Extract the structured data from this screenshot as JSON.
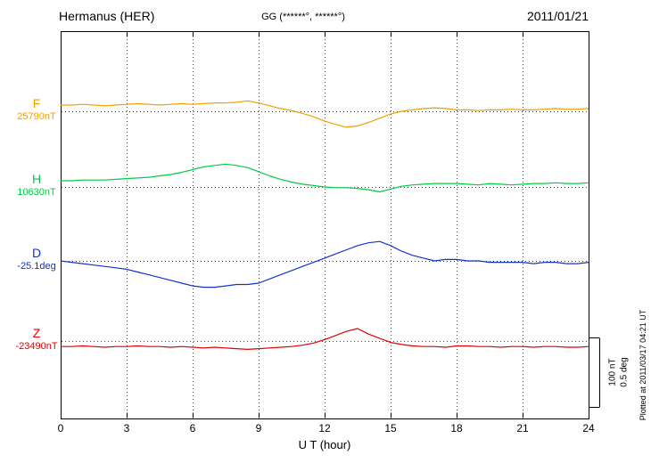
{
  "header": {
    "station": "Hermanus (HER)",
    "coords": "GG (******°, ******°)",
    "date": "2011/01/21"
  },
  "xaxis": {
    "label": "U T (hour)",
    "ticks": [
      0,
      3,
      6,
      9,
      12,
      15,
      18,
      21,
      24
    ],
    "min": 0,
    "max": 24
  },
  "scale_bar": {
    "nt_label": "100 nT",
    "deg_label": "0.5 deg"
  },
  "plotted_at": "Plotted at 2011/03/17 04:21 UT",
  "chart_data": {
    "type": "line",
    "title": "Hermanus (HER) magnetogram 2011/01/21",
    "xlabel": "U T (hour)",
    "xlim": [
      0,
      24
    ],
    "x_ticks": [
      0,
      3,
      6,
      9,
      12,
      15,
      18,
      21,
      24
    ],
    "grid": "dotted vertical at 3h intervals, dotted horizontal baseline per trace",
    "scale": {
      "nt_span": 100,
      "deg_span": 0.5
    },
    "x": [
      0,
      0.5,
      1,
      1.5,
      2,
      2.5,
      3,
      3.5,
      4,
      4.5,
      5,
      5.5,
      6,
      6.5,
      7,
      7.5,
      8,
      8.5,
      9,
      9.5,
      10,
      10.5,
      11,
      11.5,
      12,
      12.5,
      13,
      13.5,
      14,
      14.5,
      15,
      15.5,
      16,
      16.5,
      17,
      17.5,
      18,
      18.5,
      19,
      19.5,
      20,
      20.5,
      21,
      21.5,
      22,
      22.5,
      23,
      23.5,
      24
    ],
    "series": [
      {
        "name": "F",
        "unit": "nT",
        "color": "#f0a000",
        "baseline_label": "25790nT",
        "baseline_value": 25790,
        "values": [
          9,
          9,
          10,
          9,
          8,
          9,
          10,
          11,
          10,
          9,
          10,
          11,
          10,
          11,
          12,
          12,
          13,
          15,
          12,
          8,
          4,
          1,
          -3,
          -8,
          -14,
          -19,
          -23,
          -21,
          -16,
          -10,
          -4,
          0,
          2,
          4,
          5,
          4,
          2,
          2,
          1,
          2,
          2,
          3,
          2,
          2,
          3,
          4,
          3,
          3,
          4
        ]
      },
      {
        "name": "H",
        "unit": "nT",
        "color": "#00cc44",
        "baseline_label": "10630nT",
        "baseline_value": 10630,
        "values": [
          9,
          9,
          10,
          10,
          10,
          11,
          12,
          13,
          14,
          16,
          18,
          21,
          25,
          29,
          31,
          33,
          31,
          28,
          22,
          16,
          11,
          7,
          4,
          2,
          0,
          -1,
          -1,
          -2,
          -4,
          -7,
          -3,
          1,
          3,
          4,
          5,
          5,
          5,
          4,
          3,
          5,
          4,
          3,
          4,
          5,
          5,
          6,
          5,
          5,
          6
        ]
      },
      {
        "name": "D",
        "unit": "deg",
        "color": "#1133cc",
        "baseline_label": "-25.1deg",
        "baseline_value": -25.1,
        "values": [
          0,
          -0.01,
          -0.02,
          -0.03,
          -0.04,
          -0.05,
          -0.06,
          -0.08,
          -0.1,
          -0.12,
          -0.14,
          -0.16,
          -0.18,
          -0.19,
          -0.19,
          -0.18,
          -0.17,
          -0.17,
          -0.16,
          -0.13,
          -0.1,
          -0.07,
          -0.04,
          -0.01,
          0.02,
          0.05,
          0.08,
          0.11,
          0.13,
          0.14,
          0.11,
          0.07,
          0.04,
          0.02,
          0,
          0.01,
          0.01,
          0,
          0,
          -0.01,
          -0.01,
          -0.01,
          -0.01,
          -0.02,
          -0.01,
          -0.01,
          -0.02,
          -0.02,
          -0.01
        ]
      },
      {
        "name": "Z",
        "unit": "nT",
        "color": "#e00000",
        "baseline_label": "-23490nT",
        "baseline_value": -23490,
        "values": [
          -8,
          -8,
          -7,
          -8,
          -9,
          -8,
          -8,
          -7,
          -8,
          -8,
          -9,
          -8,
          -9,
          -10,
          -9,
          -10,
          -11,
          -12,
          -11,
          -10,
          -9,
          -8,
          -6,
          -3,
          2,
          8,
          14,
          18,
          10,
          4,
          -2,
          -5,
          -7,
          -8,
          -8,
          -9,
          -7,
          -7,
          -8,
          -8,
          -9,
          -8,
          -8,
          -9,
          -8,
          -8,
          -9,
          -9,
          -8
        ]
      }
    ]
  }
}
